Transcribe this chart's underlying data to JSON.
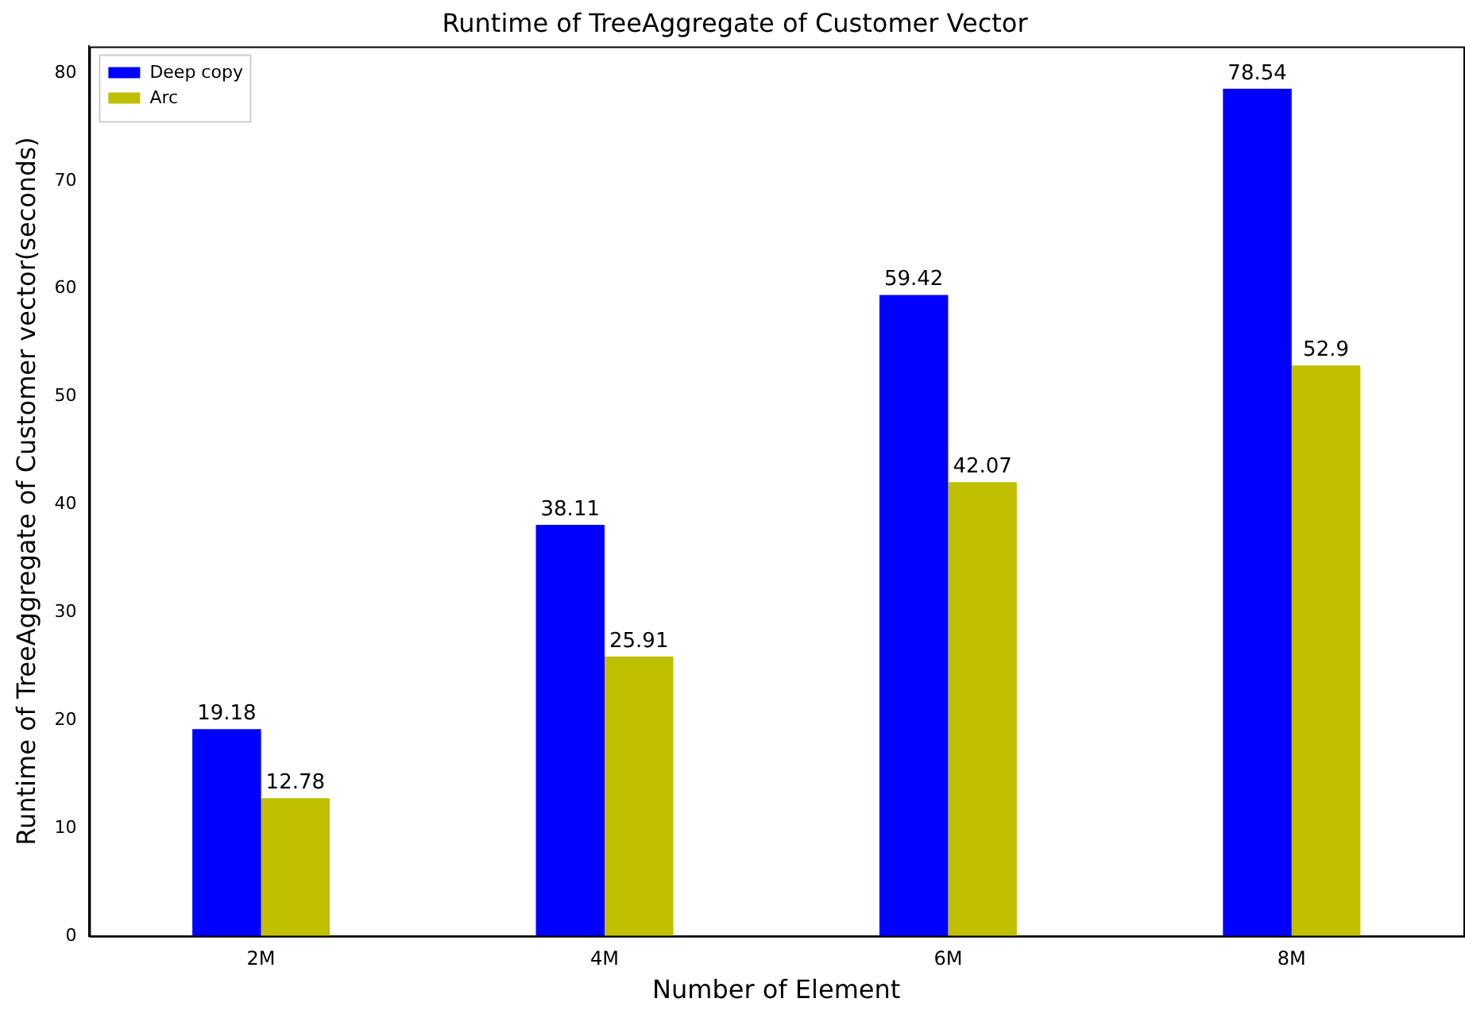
{
  "chart_data": {
    "type": "bar",
    "title": "Runtime of TreeAggregate of Customer Vector",
    "xlabel": "Number of Element",
    "ylabel": "Runtime of TreeAggregate of Customer vector(seconds)",
    "categories": [
      "2M",
      "4M",
      "6M",
      "8M"
    ],
    "series": [
      {
        "name": "Deep copy",
        "color": "#0000ff",
        "values": [
          19.18,
          38.11,
          59.42,
          78.54
        ]
      },
      {
        "name": "Arc",
        "color": "#bfbf00",
        "values": [
          12.78,
          25.91,
          42.07,
          52.9
        ]
      }
    ],
    "ylim": [
      0,
      82.47
    ],
    "yticks": [
      0,
      10,
      20,
      30,
      40,
      50,
      60,
      70,
      80
    ],
    "grid": false,
    "legend": "top left",
    "data_labels": true
  }
}
